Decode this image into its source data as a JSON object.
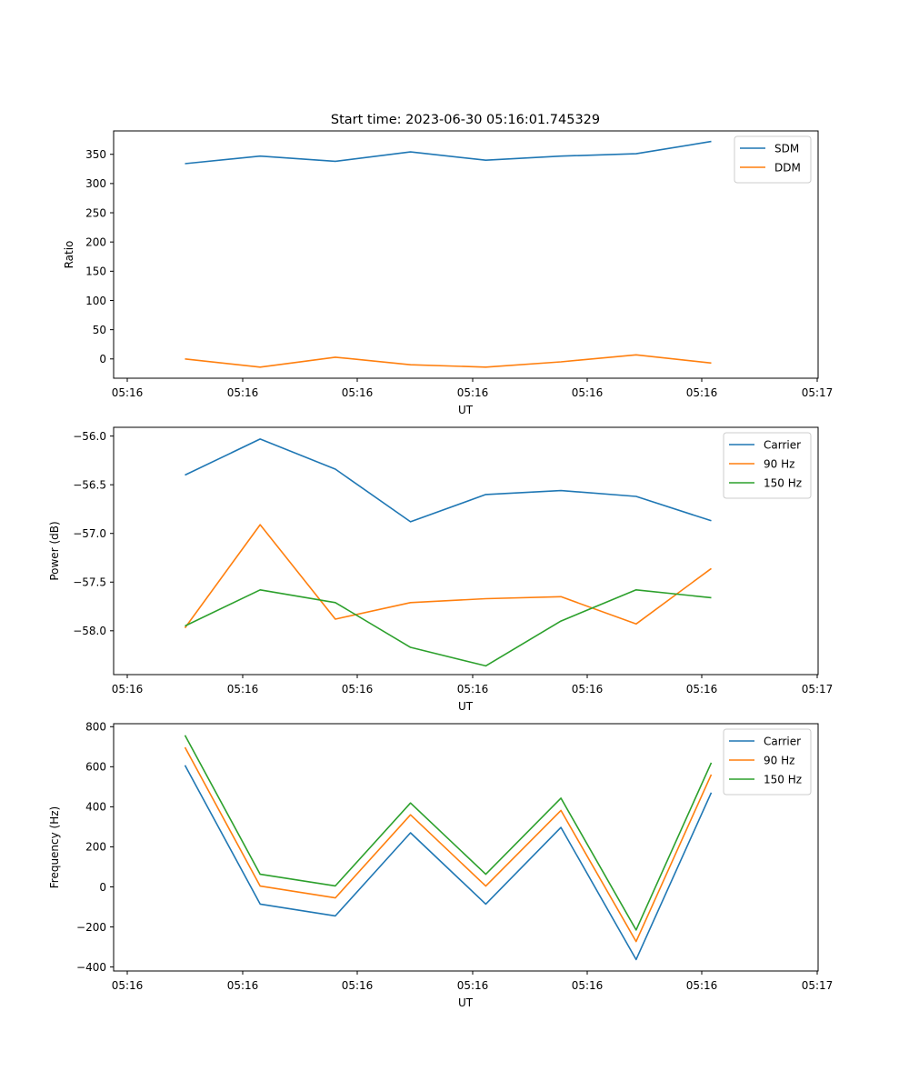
{
  "figure": {
    "title": "Start time: 2023-06-30 05:16:01.745329"
  },
  "colors": {
    "blue": "#1f77b4",
    "orange": "#ff7f0e",
    "green": "#2ca02c"
  },
  "chart_data": [
    {
      "type": "line",
      "title": "Start time: 2023-06-30 05:16:01.745329",
      "xlabel": "UT",
      "ylabel": "Ratio",
      "xtick_labels": [
        "05:16",
        "05:16",
        "05:16",
        "05:16",
        "05:16",
        "05:16",
        "05:16",
        "05:17"
      ],
      "yticks": [
        0,
        50,
        100,
        150,
        200,
        250,
        300,
        350
      ],
      "ylim": [
        -33,
        390
      ],
      "grid": false,
      "legend": "upper right",
      "series": [
        {
          "name": "SDM",
          "color": "#1f77b4",
          "values": [
            334,
            347,
            338,
            354,
            340,
            347,
            351,
            372
          ]
        },
        {
          "name": "DDM",
          "color": "#ff7f0e",
          "values": [
            0,
            -14,
            3,
            -10,
            -14,
            -5,
            7,
            -7
          ]
        }
      ]
    },
    {
      "type": "line",
      "title": "",
      "xlabel": "UT",
      "ylabel": "Power (dB)",
      "xtick_labels": [
        "05:16",
        "05:16",
        "05:16",
        "05:16",
        "05:16",
        "05:16",
        "05:16",
        "05:17"
      ],
      "yticks": [
        -58.0,
        -57.5,
        -57.0,
        -56.5,
        -56.0
      ],
      "ytick_labels": [
        "−58.0",
        "−57.5",
        "−57.0",
        "−56.5",
        "−56.0"
      ],
      "ylim": [
        -58.45,
        -55.91
      ],
      "grid": false,
      "legend": "upper right",
      "series": [
        {
          "name": "Carrier",
          "color": "#1f77b4",
          "values": [
            -56.4,
            -56.03,
            -56.34,
            -56.88,
            -56.6,
            -56.56,
            -56.62,
            -56.87
          ]
        },
        {
          "name": "90 Hz",
          "color": "#ff7f0e",
          "values": [
            -57.97,
            -56.91,
            -57.88,
            -57.71,
            -57.67,
            -57.65,
            -57.93,
            -57.36
          ]
        },
        {
          "name": "150 Hz",
          "color": "#2ca02c",
          "values": [
            -57.95,
            -57.58,
            -57.71,
            -58.17,
            -58.36,
            -57.9,
            -57.58,
            -57.66
          ]
        }
      ]
    },
    {
      "type": "line",
      "title": "",
      "xlabel": "UT",
      "ylabel": "Frequency (Hz)",
      "xtick_labels": [
        "05:16",
        "05:16",
        "05:16",
        "05:16",
        "05:16",
        "05:16",
        "05:16",
        "05:17"
      ],
      "yticks": [
        -400,
        -200,
        0,
        200,
        400,
        600,
        800
      ],
      "ytick_labels": [
        "−400",
        "−200",
        "0",
        "200",
        "400",
        "600",
        "800"
      ],
      "ylim": [
        -420,
        815
      ],
      "grid": false,
      "legend": "upper right",
      "series": [
        {
          "name": "Carrier",
          "color": "#1f77b4",
          "values": [
            607,
            -86,
            -145,
            270,
            -86,
            297,
            -363,
            471
          ]
        },
        {
          "name": "90 Hz",
          "color": "#ff7f0e",
          "values": [
            697,
            4,
            -55,
            360,
            4,
            382,
            -273,
            561
          ]
        },
        {
          "name": "150 Hz",
          "color": "#2ca02c",
          "values": [
            757,
            63,
            5,
            419,
            63,
            443,
            -215,
            620
          ]
        }
      ]
    }
  ]
}
